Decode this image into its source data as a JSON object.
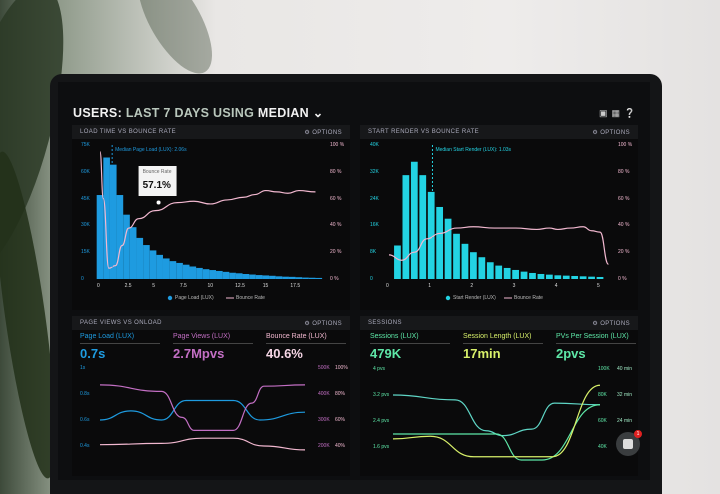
{
  "header": {
    "title_users": "USERS:",
    "title_mid": "LAST 7 DAYS",
    "title_using": "USING",
    "title_median": "MEDIAN",
    "icons": [
      "monitor-icon",
      "share-icon",
      "help-icon"
    ]
  },
  "colors": {
    "blue": "#1e9be0",
    "cyan": "#23d3e3",
    "pink": "#f2b8d0",
    "magenta": "#c36fc4",
    "green": "#5ee8a8",
    "lime": "#d8f06a",
    "teal": "#5fd6c6"
  },
  "options_label": "OPTIONS",
  "chart_data": [
    {
      "type": "bar",
      "title": "LOAD TIME VS BOUNCE RATE",
      "annotation": "Median Page Load (LUX): 2.06s",
      "tooltip": {
        "label": "Bounce Rate",
        "value": "57.1%"
      },
      "x_ticks": [
        "0",
        "2.5",
        "5",
        "7.5",
        "10",
        "12.5",
        "15",
        "17.5"
      ],
      "xlim": [
        0,
        20
      ],
      "y_ticks": [
        "0",
        "15K",
        "30K",
        "45K",
        "60K",
        "75K"
      ],
      "ylim": [
        0,
        75000
      ],
      "y2_ticks": [
        "0 %",
        "20 %",
        "40 %",
        "60 %",
        "80 %",
        "100 %"
      ],
      "y2lim": [
        0,
        100
      ],
      "bar_width": 0.6,
      "bars": [
        [
          0,
          47000
        ],
        [
          0.6,
          68000
        ],
        [
          1.2,
          64000
        ],
        [
          1.8,
          47000
        ],
        [
          2.4,
          36000
        ],
        [
          3,
          29000
        ],
        [
          3.6,
          23000
        ],
        [
          4.2,
          19000
        ],
        [
          4.8,
          16000
        ],
        [
          5.4,
          13500
        ],
        [
          6,
          11500
        ],
        [
          6.6,
          10000
        ],
        [
          7.2,
          9000
        ],
        [
          7.8,
          8000
        ],
        [
          8.4,
          7000
        ],
        [
          9,
          6200
        ],
        [
          9.6,
          5500
        ],
        [
          10.2,
          5000
        ],
        [
          10.8,
          4500
        ],
        [
          11.4,
          4000
        ],
        [
          12,
          3500
        ],
        [
          12.6,
          3200
        ],
        [
          13.2,
          2800
        ],
        [
          13.8,
          2500
        ],
        [
          14.4,
          2200
        ],
        [
          15,
          2000
        ],
        [
          15.6,
          1800
        ],
        [
          16.2,
          1500
        ],
        [
          16.8,
          1300
        ],
        [
          17.4,
          1200
        ],
        [
          18,
          1000
        ],
        [
          18.6,
          800
        ],
        [
          19.2,
          700
        ],
        [
          19.8,
          600
        ]
      ],
      "line": [
        [
          0,
          95
        ],
        [
          0.3,
          60
        ],
        [
          0.8,
          8
        ],
        [
          1.4,
          10
        ],
        [
          2,
          25
        ],
        [
          2.6,
          38
        ],
        [
          3.5,
          45
        ],
        [
          5,
          51
        ],
        [
          7,
          57
        ],
        [
          8.5,
          58
        ],
        [
          10,
          56
        ],
        [
          11.5,
          59
        ],
        [
          13,
          61
        ],
        [
          14,
          63
        ],
        [
          15,
          66
        ],
        [
          16,
          65
        ],
        [
          17,
          64
        ],
        [
          18,
          66
        ],
        [
          19.5,
          65
        ]
      ],
      "legend": [
        "Page Load (LUX)",
        "Bounce Rate"
      ]
    },
    {
      "type": "bar",
      "title": "START RENDER VS BOUNCE RATE",
      "annotation": "Median Start Render (LUX): 1.03s",
      "x_ticks": [
        "0",
        "1",
        "2",
        "3",
        "4",
        "5"
      ],
      "xlim": [
        0,
        5
      ],
      "y_ticks": [
        "0",
        "8K",
        "16K",
        "24K",
        "32K",
        "40K"
      ],
      "ylim": [
        0,
        40000
      ],
      "y2_ticks": [
        "0 %",
        "20 %",
        "40 %",
        "60 %",
        "80 %",
        "100 %"
      ],
      "y2lim": [
        0,
        100
      ],
      "bar_width": 0.16,
      "bars": [
        [
          0.2,
          10000
        ],
        [
          0.4,
          31000
        ],
        [
          0.6,
          35000
        ],
        [
          0.8,
          31000
        ],
        [
          1,
          26000
        ],
        [
          1.2,
          21500
        ],
        [
          1.4,
          18000
        ],
        [
          1.6,
          13500
        ],
        [
          1.8,
          10500
        ],
        [
          2,
          8000
        ],
        [
          2.2,
          6500
        ],
        [
          2.4,
          5000
        ],
        [
          2.6,
          4000
        ],
        [
          2.8,
          3300
        ],
        [
          3,
          2700
        ],
        [
          3.2,
          2200
        ],
        [
          3.4,
          1800
        ],
        [
          3.6,
          1500
        ],
        [
          3.8,
          1300
        ],
        [
          4,
          1100
        ],
        [
          4.2,
          1000
        ],
        [
          4.4,
          900
        ],
        [
          4.6,
          800
        ],
        [
          4.8,
          700
        ],
        [
          5,
          600
        ]
      ],
      "line": [
        [
          0,
          18
        ],
        [
          0.3,
          14
        ],
        [
          0.6,
          20
        ],
        [
          0.9,
          30
        ],
        [
          1.2,
          34
        ],
        [
          1.6,
          38
        ],
        [
          2,
          39
        ],
        [
          2.5,
          38
        ],
        [
          3,
          38
        ],
        [
          3.5,
          37
        ],
        [
          3.8,
          38
        ],
        [
          4,
          37
        ],
        [
          4.3,
          38
        ],
        [
          4.6,
          39
        ],
        [
          4.8,
          36
        ],
        [
          5,
          35
        ],
        [
          5.2,
          11
        ]
      ],
      "legend": [
        "Start Render (LUX)",
        "Bounce Rate"
      ]
    },
    {
      "type": "line",
      "title": "PAGE VIEWS VS ONLOAD",
      "kpis": [
        {
          "label": "Page Load (LUX)",
          "value": "0.7s"
        },
        {
          "label": "Page Views (LUX)",
          "value": "2.7Mpvs"
        },
        {
          "label": "Bounce Rate (LUX)",
          "value": "40.6%"
        }
      ],
      "y_ticks": [
        "1s",
        "0.8s",
        "0.6s",
        "0.4s"
      ],
      "y2_ticks": [
        "500K",
        "400K",
        "300K",
        "200K"
      ],
      "y3_ticks": [
        "100%",
        "80%",
        "60%",
        "40%"
      ],
      "xlim": [
        0,
        10
      ],
      "ylim": [
        0.4,
        1
      ],
      "series": [
        {
          "color": "blue",
          "points": [
            [
              0,
              0.6
            ],
            [
              1.5,
              0.67
            ],
            [
              3,
              0.6
            ],
            [
              4.2,
              0.75
            ],
            [
              6.5,
              0.75
            ],
            [
              7.8,
              0.6
            ],
            [
              10,
              0.66
            ]
          ]
        },
        {
          "color": "magenta",
          "points": [
            [
              0,
              0.87
            ],
            [
              3,
              0.82
            ],
            [
              4,
              0.62
            ],
            [
              4.6,
              0.52
            ],
            [
              6.5,
              0.52
            ],
            [
              7.4,
              0.73
            ],
            [
              8,
              0.86
            ],
            [
              10,
              0.87
            ]
          ]
        },
        {
          "color": "pink",
          "points": [
            [
              0,
              0.41
            ],
            [
              3,
              0.42
            ],
            [
              5,
              0.46
            ],
            [
              6.5,
              0.46
            ],
            [
              8,
              0.4
            ],
            [
              10,
              0.37
            ]
          ]
        }
      ]
    },
    {
      "type": "line",
      "title": "SESSIONS",
      "kpis": [
        {
          "label": "Sessions (LUX)",
          "value": "479K"
        },
        {
          "label": "Session Length (LUX)",
          "value": "17min"
        },
        {
          "label": "PVs Per Session (LUX)",
          "value": "2pvs"
        }
      ],
      "y_ticks": [
        "4 pvs",
        "3.2 pvs",
        "2.4 pvs",
        "1.6 pvs"
      ],
      "y2_ticks": [
        "100K",
        "80K",
        "60K",
        "40K"
      ],
      "y3_ticks": [
        "40 min",
        "32 min",
        "24 min",
        ""
      ],
      "xlim": [
        0,
        10
      ],
      "ylim": [
        1.6,
        4
      ],
      "series": [
        {
          "color": "teal",
          "points": [
            [
              0,
              3.2
            ],
            [
              3,
              3.05
            ],
            [
              4.5,
              2.1
            ],
            [
              5.3,
              1.95
            ],
            [
              6.7,
              2.15
            ],
            [
              7.8,
              2.95
            ],
            [
              10,
              2.9
            ]
          ]
        },
        {
          "color": "green",
          "points": [
            [
              0,
              2.0
            ],
            [
              5,
              2.0
            ],
            [
              6.2,
              1.2
            ],
            [
              7.2,
              1.2
            ],
            [
              10,
              2.9
            ]
          ]
        },
        {
          "color": "lime",
          "points": [
            [
              0,
              1.85
            ],
            [
              1.8,
              1.93
            ],
            [
              3.9,
              1.3
            ],
            [
              7.7,
              1.3
            ],
            [
              10,
              3.5
            ]
          ]
        }
      ]
    }
  ],
  "chat": {
    "badge": "1"
  }
}
